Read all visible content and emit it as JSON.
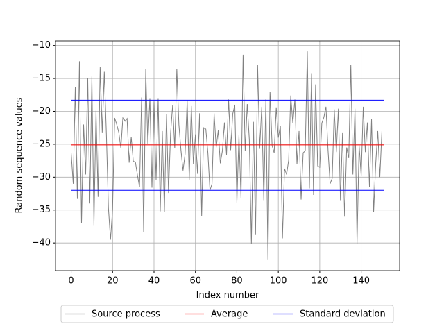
{
  "chart_data": {
    "type": "line",
    "xlabel": "Index number",
    "ylabel": "Random sequence values",
    "xlim": [
      -7.55,
      158.55
    ],
    "ylim": [
      -44.2,
      -9.3
    ],
    "xticks": [
      0,
      20,
      40,
      60,
      80,
      100,
      120,
      140
    ],
    "yticks": [
      {
        "value": -10,
        "label": "−10"
      },
      {
        "value": -15,
        "label": "−15"
      },
      {
        "value": -20,
        "label": "−20"
      },
      {
        "value": -25,
        "label": "−25"
      },
      {
        "value": -30,
        "label": "−30"
      },
      {
        "value": -35,
        "label": "−35"
      },
      {
        "value": -40,
        "label": "−40"
      }
    ],
    "grid": true,
    "legend": "below",
    "series": [
      {
        "name": "Source process",
        "color": "#808080",
        "x": [
          0,
          1,
          2,
          3,
          4,
          5,
          6,
          7,
          8,
          9,
          10,
          11,
          12,
          13,
          14,
          15,
          16,
          17,
          18,
          19,
          20,
          21,
          22,
          23,
          24,
          25,
          26,
          27,
          28,
          29,
          30,
          31,
          32,
          33,
          34,
          35,
          36,
          37,
          38,
          39,
          40,
          41,
          42,
          43,
          44,
          45,
          46,
          47,
          48,
          49,
          50,
          51,
          52,
          53,
          54,
          55,
          56,
          57,
          58,
          59,
          60,
          61,
          62,
          63,
          64,
          65,
          66,
          67,
          68,
          69,
          70,
          71,
          72,
          73,
          74,
          75,
          76,
          77,
          78,
          79,
          80,
          81,
          82,
          83,
          84,
          85,
          86,
          87,
          88,
          89,
          90,
          91,
          92,
          93,
          94,
          95,
          96,
          97,
          98,
          99,
          100,
          101,
          102,
          103,
          104,
          105,
          106,
          107,
          108,
          109,
          110,
          111,
          112,
          113,
          114,
          115,
          116,
          117,
          118,
          119,
          120,
          121,
          122,
          123,
          124,
          125,
          126,
          127,
          128,
          129,
          130,
          131,
          132,
          133,
          134,
          135,
          136,
          137,
          138,
          139,
          140,
          141,
          142,
          143,
          144,
          145,
          146,
          147,
          148,
          149,
          150
        ],
        "values": [
          -26.3,
          -31,
          -16.3,
          -33.3,
          -12.4,
          -37,
          -22,
          -29.6,
          -14.9,
          -34,
          -14.7,
          -37.4,
          -19.9,
          -33,
          -13.3,
          -23.2,
          -14,
          -23.4,
          -34.7,
          -39.5,
          -34.8,
          -21,
          -22,
          -23.2,
          -25.6,
          -20.8,
          -21.5,
          -21.1,
          -27.8,
          -23.9,
          -27.6,
          -27.7,
          -29.7,
          -31.5,
          -17.9,
          -38.4,
          -13.6,
          -24.9,
          -18,
          -31.6,
          -18.5,
          -30.4,
          -18,
          -35.2,
          -23,
          -35.3,
          -20.4,
          -32.4,
          -23.3,
          -19,
          -25.6,
          -13.6,
          -22,
          -25.9,
          -29,
          -26.5,
          -18.3,
          -30.4,
          -19.2,
          -28,
          -23.5,
          -29.5,
          -20.3,
          -35.9,
          -22.5,
          -22.7,
          -26.3,
          -32,
          -31,
          -20.3,
          -25.5,
          -22.9,
          -27.9,
          -26,
          -21.7,
          -26.6,
          -18.2,
          -25.9,
          -20.4,
          -19,
          -33.9,
          -23.6,
          -33.2,
          -11.4,
          -26,
          -18.9,
          -24.3,
          -40.1,
          -21.6,
          -38.8,
          -12.9,
          -25.7,
          -19.3,
          -33.6,
          -18.1,
          -42.6,
          -17,
          -25.2,
          -26.3,
          -19.4,
          -24,
          -22.2,
          -39.3,
          -28.7,
          -29.6,
          -27.4,
          -17.6,
          -21.8,
          -18.2,
          -28,
          -23,
          -33.4,
          -26.3,
          -26,
          -10.9,
          -31.7,
          -14.2,
          -32.7,
          -15.9,
          -28.3,
          -28.5,
          -21.8,
          -20.9,
          -19.3,
          -25.9,
          -31,
          -30.2,
          -19.7,
          -26.2,
          -19.6,
          -33.6,
          -23.2,
          -36,
          -25.5,
          -27.1,
          -12.9,
          -29.6,
          -19.6,
          -40.1,
          -25.1,
          -29.8,
          -19.3,
          -26.2,
          -21.7,
          -31.5,
          -21.2,
          -35.3,
          -28,
          -23,
          -30,
          -23
        ]
      },
      {
        "name": "Average",
        "color": "#ff0000",
        "x": [
          0,
          151
        ],
        "values": [
          -25.1,
          -25.1
        ]
      },
      {
        "name": "Standard deviation",
        "color": "#0000ff",
        "x": [
          0,
          151
        ],
        "values": [
          -18.3,
          -18.3
        ]
      },
      {
        "x": [
          0,
          151
        ],
        "color": "#0000ff",
        "values": [
          -32.0,
          -32.0
        ]
      }
    ]
  }
}
